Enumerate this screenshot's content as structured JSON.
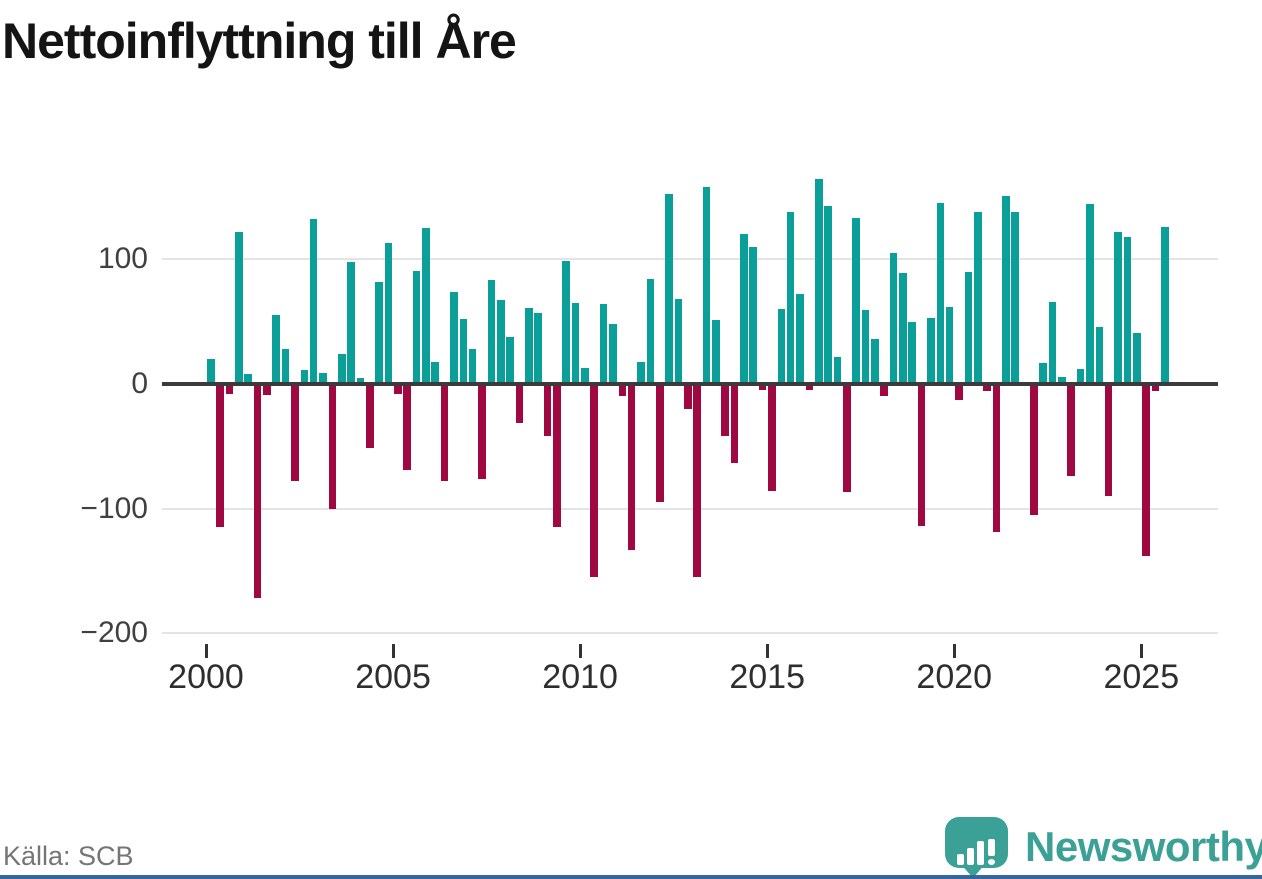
{
  "title": "Nettoinflyttning till Åre",
  "source": "Källa: SCB",
  "branding": {
    "name": "Newsworthy"
  },
  "chart_data": {
    "type": "bar",
    "title": "Nettoinflyttning till Åre",
    "frequency": "quarterly",
    "start_period": "2000Q1",
    "end_period": "2025Q3",
    "values": [
      20,
      -115,
      -8,
      122,
      8,
      -172,
      -9,
      55,
      28,
      -78,
      11,
      132,
      9,
      -100,
      24,
      98,
      5,
      -51,
      82,
      113,
      -8,
      -69,
      91,
      125,
      18,
      -78,
      74,
      52,
      28,
      -76,
      83,
      67,
      38,
      -31,
      61,
      57,
      -42,
      -115,
      99,
      65,
      13,
      -155,
      64,
      48,
      -10,
      -133,
      18,
      84,
      -95,
      152,
      68,
      -20,
      -155,
      158,
      51,
      -42,
      -63,
      120,
      110,
      -5,
      -86,
      60,
      138,
      72,
      -5,
      164,
      143,
      22,
      -87,
      133,
      59,
      36,
      -10,
      105,
      89,
      50,
      -114,
      53,
      145,
      62,
      -13,
      90,
      138,
      -6,
      -119,
      151,
      138,
      0,
      -105,
      17,
      66,
      6,
      -74,
      12,
      144,
      46,
      -90,
      122,
      118,
      41,
      -138,
      -6,
      126
    ],
    "x_tick_labels": [
      "2000",
      "2005",
      "2010",
      "2015",
      "2020",
      "2025"
    ],
    "years_per_tick": 5,
    "y_ticks": [
      100,
      0,
      -100,
      -200
    ],
    "y_tick_labels": [
      "100",
      "0",
      "−100",
      "−200"
    ],
    "ylim": [
      -210,
      175
    ],
    "grid": "horizontal",
    "legend": "none",
    "positive_color": "#0aa099",
    "negative_color": "#a00842"
  }
}
